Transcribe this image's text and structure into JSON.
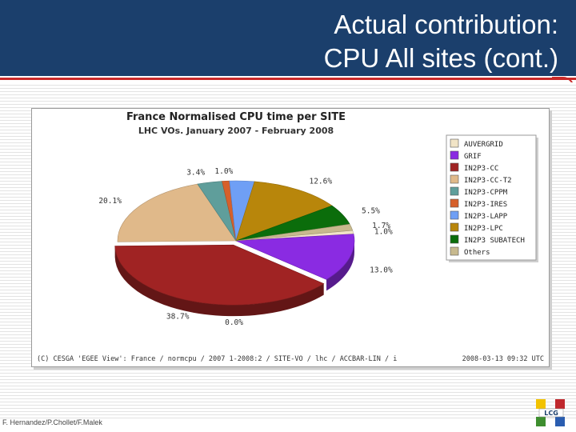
{
  "slide": {
    "title_line1": "Actual contribution:",
    "title_line2": "CPU All sites (cont.)",
    "footer": "F. Hernandez/P.Chollet/F.Malek",
    "logo_text": "LCG"
  },
  "colors": {
    "header_bg": "#1b3f6c",
    "accent_red": "#c92a2a"
  },
  "chart_data": {
    "type": "pie",
    "title": "France Normalised CPU time per SITE",
    "subtitle": "LHC VOs. January 2007 - February 2008",
    "legend_position": "top-right",
    "slices": [
      {
        "name": "AUVERGRID",
        "value": 1.0,
        "label": "1.0%",
        "color": "#f1e4c6"
      },
      {
        "name": "GRIF",
        "value": 13.0,
        "label": "13.0%",
        "color": "#8a2be2"
      },
      {
        "name": "IN2P3-CC",
        "value": 38.7,
        "label": "38.7%",
        "color": "#a02323"
      },
      {
        "name": "IN2P3-CC-T2",
        "value": 20.1,
        "label": "20.1%",
        "color": "#e0b98a"
      },
      {
        "name": "IN2P3-CPPM",
        "value": 3.4,
        "label": "3.4%",
        "color": "#5f9e9b"
      },
      {
        "name": "IN2P3-IRES",
        "value": 1.0,
        "label": "1.0%",
        "color": "#d6602b"
      },
      {
        "name": "IN2P3-LAPP",
        "value": 3.4,
        "label": "",
        "color": "#6f9ff5"
      },
      {
        "name": "IN2P3-LPC",
        "value": 12.6,
        "label": "12.6%",
        "color": "#b8860b"
      },
      {
        "name": "IN2P3 SUBATECH",
        "value": 5.5,
        "label": "5.5%",
        "color": "#0b6d0b"
      },
      {
        "name": "Others",
        "value": 1.7,
        "label": "1.7%",
        "color": "#c7b98e"
      }
    ],
    "extra_label": "0.0%",
    "source_note": "(C) CESGA 'EGEE View': France / normcpu / 2007 1-2008:2 / SITE-VO / lhc / ACCBAR-LIN / i",
    "timestamp": "2008-03-13 09:32 UTC"
  }
}
